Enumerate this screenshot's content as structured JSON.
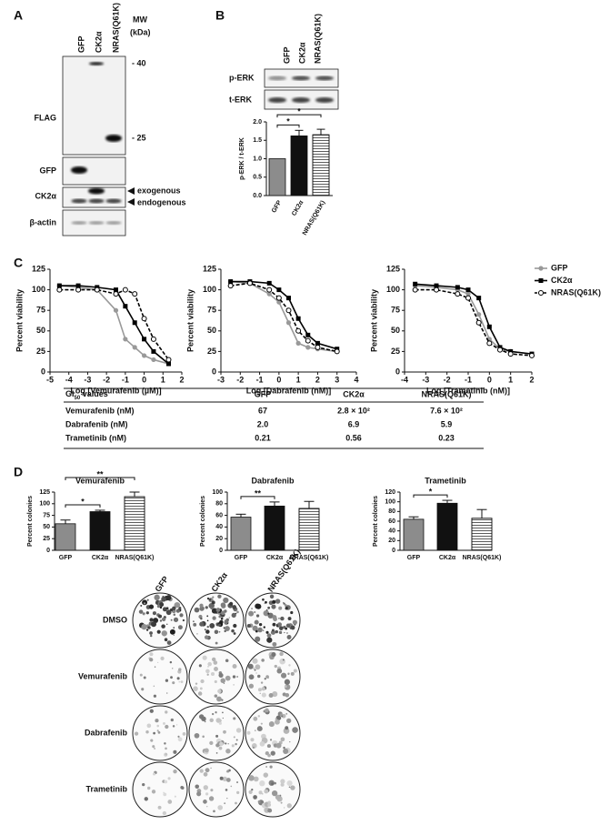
{
  "panel_a": {
    "label": "A",
    "lanes": [
      "GFP",
      "CK2α",
      "NRAS(Q61K)"
    ],
    "mw": [
      "MW",
      "(kDa)"
    ],
    "blots": [
      "FLAG",
      "GFP",
      "CK2α",
      "β-actin"
    ],
    "markers": [
      "- 40",
      "- 25"
    ],
    "arrows": [
      "exogenous",
      "endogenous"
    ]
  },
  "panel_b": {
    "label": "B",
    "lanes": [
      "GFP",
      "CK2α",
      "NRAS(Q61K)"
    ],
    "blots": [
      "p-ERK",
      "t-ERK"
    ],
    "chart": {
      "type": "bar",
      "ylabel": "p-ERK / t-ERK",
      "categories": [
        "GFP",
        "CK2α",
        "NRAS(Q61K)"
      ],
      "values": [
        1.0,
        1.62,
        1.65
      ],
      "errors": [
        null,
        0.15,
        0.15
      ],
      "colors": [
        "#8c8c8c",
        "#111111",
        "#ffffff"
      ],
      "hatch": [
        false,
        false,
        true
      ],
      "ylim": [
        0,
        2
      ],
      "yticks": [
        {
          "value": 0,
          "label": "0.0"
        },
        {
          "value": 0.5,
          "label": "0.5"
        },
        {
          "value": 1,
          "label": "1.0"
        },
        {
          "value": 1.5,
          "label": "1.5"
        },
        {
          "value": 2,
          "label": "2.0"
        }
      ],
      "significance": [
        {
          "from": 0,
          "to": 1,
          "label": "*"
        },
        {
          "from": 0,
          "to": 2,
          "label": "*"
        }
      ]
    }
  },
  "panel_c": {
    "label": "C",
    "legend": [
      {
        "name": "GFP",
        "color": "#999999",
        "marker": "circle",
        "dash": false
      },
      {
        "name": "CK2α",
        "color": "#000000",
        "marker": "square",
        "dash": false
      },
      {
        "name": "NRAS(Q61K)",
        "color": "#000000",
        "marker": "open-circle",
        "dash": true
      }
    ],
    "charts": [
      {
        "type": "line",
        "xlabel": "Log [Vemurafenib (µM)]",
        "ylabel": "Percent viability",
        "x": [
          -4.5,
          -3.5,
          -2.5,
          -1.5,
          -1,
          -0.5,
          0,
          0.5,
          1.3
        ],
        "series": [
          {
            "values": [
              105,
              103,
              100,
              75,
              40,
              30,
              20,
              15,
              10
            ]
          },
          {
            "values": [
              105,
              105,
              103,
              100,
              80,
              60,
              40,
              25,
              10
            ]
          },
          {
            "values": [
              100,
              100,
              100,
              95,
              100,
              95,
              65,
              40,
              15
            ]
          }
        ],
        "xlim": [
          -5,
          2
        ],
        "xticks": [
          -5,
          -4,
          -3,
          -2,
          -1,
          0,
          1,
          2
        ],
        "ylim": [
          0,
          125
        ],
        "yticks": [
          0,
          25,
          50,
          75,
          100,
          125
        ]
      },
      {
        "type": "line",
        "xlabel": "Log [Dabrafenib (nM)]",
        "ylabel": "Percent viability",
        "x": [
          -2.5,
          -1.5,
          -0.5,
          0,
          0.5,
          1,
          1.5,
          2,
          3
        ],
        "series": [
          {
            "values": [
              110,
              108,
              95,
              85,
              60,
              35,
              30,
              28,
              25
            ]
          },
          {
            "values": [
              110,
              110,
              108,
              100,
              90,
              65,
              45,
              35,
              28
            ]
          },
          {
            "values": [
              105,
              108,
              100,
              90,
              75,
              50,
              38,
              30,
              25
            ]
          }
        ],
        "xlim": [
          -3,
          4
        ],
        "xticks": [
          -3,
          -2,
          -1,
          0,
          1,
          2,
          3,
          4
        ],
        "ylim": [
          0,
          125
        ],
        "yticks": [
          0,
          25,
          50,
          75,
          100,
          125
        ]
      },
      {
        "type": "line",
        "xlabel": "Log [Trametinib (nM)]",
        "ylabel": "Percent viability",
        "x": [
          -3.5,
          -2.5,
          -1.5,
          -1,
          -0.5,
          0,
          0.5,
          1,
          2
        ],
        "series": [
          {
            "values": [
              105,
              103,
              100,
              95,
              70,
              40,
              28,
              25,
              22
            ]
          },
          {
            "values": [
              107,
              105,
              103,
              100,
              90,
              55,
              30,
              25,
              22
            ]
          },
          {
            "values": [
              100,
              100,
              95,
              90,
              60,
              35,
              27,
              22,
              20
            ]
          }
        ],
        "xlim": [
          -4,
          2
        ],
        "xticks": [
          -4,
          -3,
          -2,
          -1,
          0,
          1,
          2
        ],
        "ylim": [
          0,
          125
        ],
        "yticks": [
          0,
          25,
          50,
          75,
          100,
          125
        ]
      }
    ],
    "table": {
      "header": [
        "GI",
        "50",
        " values"
      ],
      "columns": [
        "GFP",
        "CK2α",
        "NRAS(Q61K)"
      ],
      "rows": [
        [
          "Vemurafenib (nM)",
          "67",
          "2.8 × 10²",
          "7.6 × 10²"
        ],
        [
          "Dabrafenib (nM)",
          "2.0",
          "6.9",
          "5.9"
        ],
        [
          "Trametinib (nM)",
          "0.21",
          "0.56",
          "0.23"
        ]
      ]
    }
  },
  "panel_d": {
    "label": "D",
    "charts": [
      {
        "type": "bar",
        "title": "Vemurafenib",
        "ylabel": "Percent colonies",
        "categories": [
          "GFP",
          "CK2α",
          "NRAS(Q61K)"
        ],
        "values": [
          57,
          83,
          115
        ],
        "errors": [
          8,
          3,
          10
        ],
        "colors": [
          "#8c8c8c",
          "#111111",
          "#ffffff"
        ],
        "hatch": [
          false,
          false,
          true
        ],
        "ylim": [
          0,
          125
        ],
        "yticks": [
          0,
          25,
          50,
          75,
          100,
          125
        ],
        "significance": [
          {
            "from": 0,
            "to": 1,
            "label": "*"
          },
          {
            "from": 0,
            "to": 2,
            "label": "**"
          }
        ]
      },
      {
        "type": "bar",
        "title": "Dabrafenib",
        "ylabel": "Percent colonies",
        "categories": [
          "GFP",
          "CK2α",
          "NRAS(Q61K)"
        ],
        "values": [
          57,
          76,
          72
        ],
        "errors": [
          5,
          7,
          12
        ],
        "colors": [
          "#8c8c8c",
          "#111111",
          "#ffffff"
        ],
        "hatch": [
          false,
          false,
          true
        ],
        "ylim": [
          0,
          100
        ],
        "yticks": [
          0,
          20,
          40,
          60,
          80,
          100
        ],
        "significance": [
          {
            "from": 0,
            "to": 1,
            "label": "**"
          }
        ]
      },
      {
        "type": "bar",
        "title": "Trametinib",
        "ylabel": "Percent colonies",
        "categories": [
          "GFP",
          "CK2α",
          "NRAS(Q61K)"
        ],
        "values": [
          64,
          97,
          66
        ],
        "errors": [
          5,
          6,
          18
        ],
        "colors": [
          "#8c8c8c",
          "#111111",
          "#ffffff"
        ],
        "hatch": [
          false,
          false,
          true
        ],
        "ylim": [
          0,
          120
        ],
        "yticks": [
          0,
          20,
          40,
          60,
          80,
          100,
          120
        ],
        "significance": [
          {
            "from": 0,
            "to": 1,
            "label": "*"
          }
        ]
      }
    ],
    "colonies": {
      "columns": [
        "GFP",
        "CK2α",
        "NRAS(Q61K)"
      ],
      "rows": [
        "DMSO",
        "Vemurafenib",
        "Dabrafenib",
        "Trametinib"
      ]
    }
  }
}
